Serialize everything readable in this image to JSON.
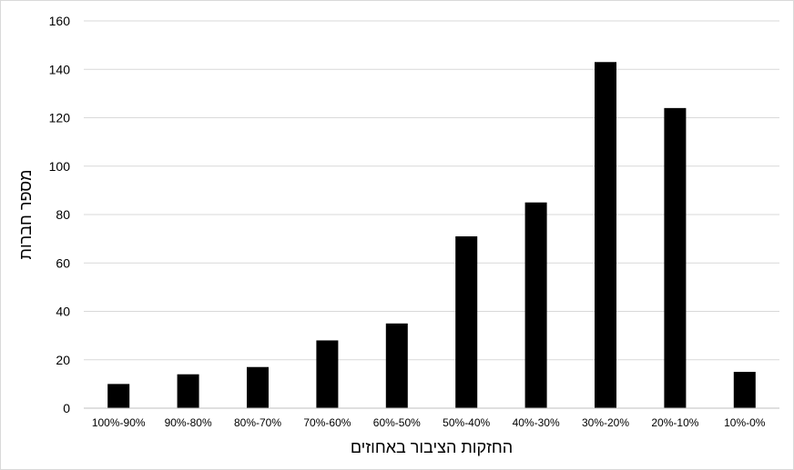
{
  "chart_data": {
    "type": "bar",
    "categories": [
      "100%-90%",
      "90%-80%",
      "80%-70%",
      "70%-60%",
      "60%-50%",
      "50%-40%",
      "40%-30%",
      "30%-20%",
      "20%-10%",
      "10%-0%"
    ],
    "values": [
      10,
      14,
      17,
      28,
      35,
      71,
      85,
      143,
      124,
      15
    ],
    "title": "",
    "xlabel": "החזקות הציבור באחוזים",
    "ylabel": "מספר חברות",
    "ylim": [
      0,
      160
    ],
    "yticks": [
      0,
      20,
      40,
      60,
      80,
      100,
      120,
      140,
      160
    ],
    "grid": true,
    "legend": "none",
    "colors": {
      "bar": "#000000",
      "grid": "#d9d9d9",
      "axis": "#bfbfbf",
      "frame": "#d9d9d9"
    }
  }
}
